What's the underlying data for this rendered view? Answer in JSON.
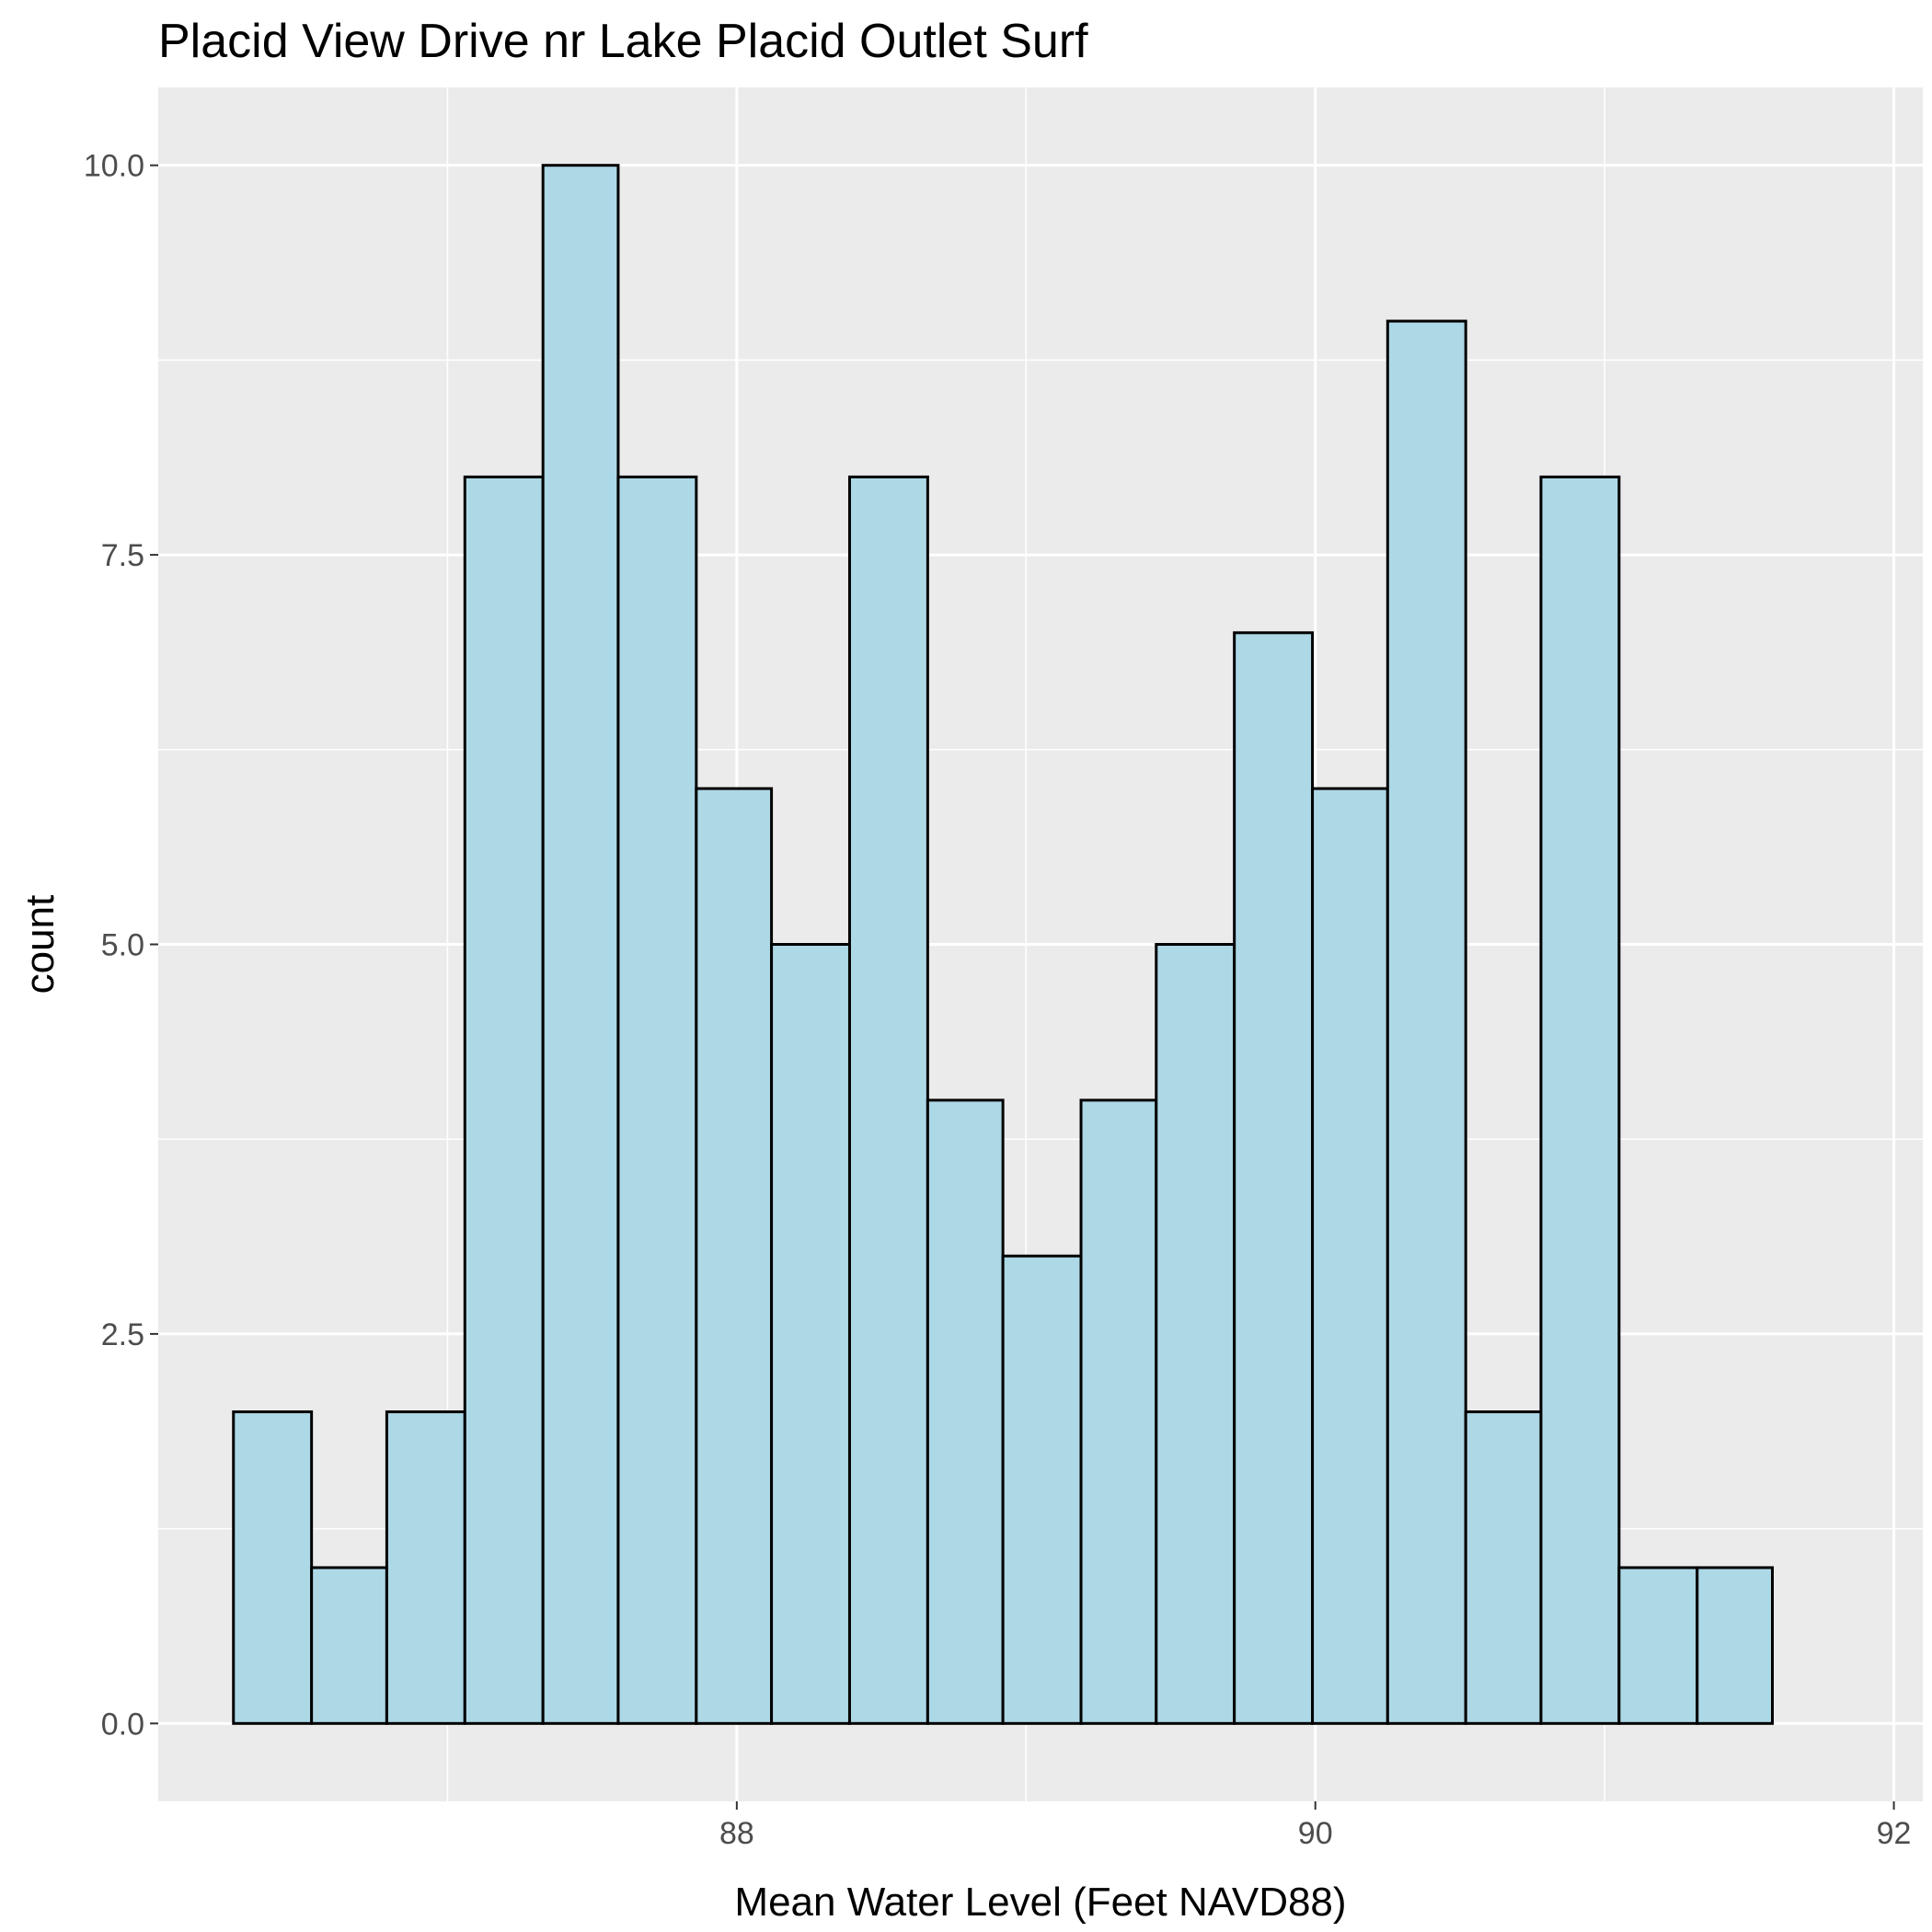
{
  "chart_data": {
    "type": "bar",
    "title": "Placid View Drive nr Lake Placid Outlet Surf",
    "xlabel": "Mean Water Level (Feet NAVD88)",
    "ylabel": "count",
    "xlim": [
      86.0,
      92.1
    ],
    "ylim": [
      -0.5,
      10.5
    ],
    "x_ticks": [
      88,
      90,
      92
    ],
    "x_tick_labels": [
      "88",
      "90",
      "92"
    ],
    "y_ticks": [
      0,
      2.5,
      5,
      7.5,
      10
    ],
    "y_tick_labels": [
      "0.0",
      "2.5",
      "5.0",
      "7.5",
      "10.0"
    ],
    "grid": true,
    "bins": [
      {
        "x0": 86.26,
        "x1": 86.53,
        "count": 2
      },
      {
        "x0": 86.53,
        "x1": 86.79,
        "count": 1
      },
      {
        "x0": 86.79,
        "x1": 87.06,
        "count": 2
      },
      {
        "x0": 87.06,
        "x1": 87.33,
        "count": 8
      },
      {
        "x0": 87.33,
        "x1": 87.59,
        "count": 10
      },
      {
        "x0": 87.59,
        "x1": 87.86,
        "count": 8
      },
      {
        "x0": 87.86,
        "x1": 88.12,
        "count": 6
      },
      {
        "x0": 88.12,
        "x1": 88.39,
        "count": 5
      },
      {
        "x0": 88.39,
        "x1": 88.66,
        "count": 8
      },
      {
        "x0": 88.66,
        "x1": 88.92,
        "count": 4
      },
      {
        "x0": 88.92,
        "x1": 89.19,
        "count": 3
      },
      {
        "x0": 89.19,
        "x1": 89.45,
        "count": 4
      },
      {
        "x0": 89.45,
        "x1": 89.72,
        "count": 5
      },
      {
        "x0": 89.72,
        "x1": 89.99,
        "count": 7
      },
      {
        "x0": 89.99,
        "x1": 90.25,
        "count": 6
      },
      {
        "x0": 90.25,
        "x1": 90.52,
        "count": 9
      },
      {
        "x0": 90.52,
        "x1": 90.78,
        "count": 2
      },
      {
        "x0": 90.78,
        "x1": 91.05,
        "count": 8
      },
      {
        "x0": 91.05,
        "x1": 91.32,
        "count": 1
      },
      {
        "x0": 91.32,
        "x1": 91.58,
        "count": 1
      }
    ],
    "colors": {
      "bar_fill": "#add8e6",
      "bar_stroke": "#000000",
      "panel_bg": "#ebebeb",
      "grid": "#ffffff",
      "tick_text": "#4d4d4d"
    }
  }
}
